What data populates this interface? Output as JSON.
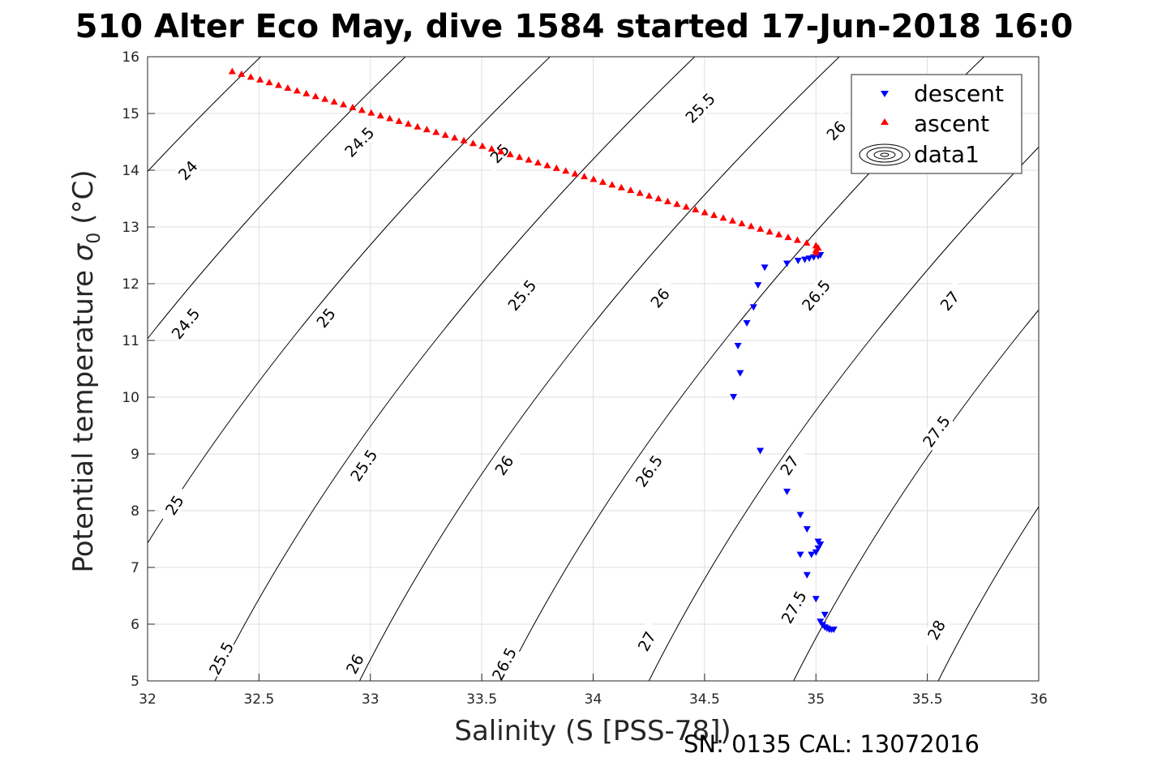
{
  "chart_data": {
    "type": "scatter",
    "title": "510 Alter Eco May, dive 1584 started 17-Jun-2018 16:0",
    "xlabel": "Salinity (S [PSS-78])",
    "ylabel": "Potential temperature",
    "ylabel_sigma": "σ",
    "ylabel_sub": "0",
    "ylabel_unit": "(°C)",
    "footer": "SN: 0135  CAL: 13072016",
    "xlim": [
      32,
      36
    ],
    "ylim": [
      5,
      16
    ],
    "xticks": [
      "32",
      "32.5",
      "33",
      "33.5",
      "34",
      "34.5",
      "35",
      "35.5",
      "36"
    ],
    "yticks": [
      "5",
      "6",
      "7",
      "8",
      "9",
      "10",
      "11",
      "12",
      "13",
      "14",
      "15",
      "16"
    ],
    "grid": true,
    "legend_position": "top-right",
    "legend": [
      {
        "name": "descent",
        "marker": "triangle-down",
        "color": "#0000ff"
      },
      {
        "name": "ascent",
        "marker": "triangle-up",
        "color": "#ff0000"
      },
      {
        "name": "data1",
        "marker": "contour",
        "color": "#000000"
      }
    ],
    "series": [
      {
        "name": "descent",
        "color": "#0000ff",
        "points": [
          [
            34.63,
            10.0
          ],
          [
            34.66,
            10.42
          ],
          [
            34.65,
            10.9
          ],
          [
            34.69,
            11.3
          ],
          [
            34.72,
            11.58
          ],
          [
            34.74,
            11.97
          ],
          [
            34.77,
            12.28
          ],
          [
            34.87,
            12.35
          ],
          [
            34.92,
            12.4
          ],
          [
            34.95,
            12.42
          ],
          [
            34.97,
            12.44
          ],
          [
            34.99,
            12.46
          ],
          [
            35.01,
            12.48
          ],
          [
            35.02,
            12.5
          ],
          [
            34.75,
            9.05
          ],
          [
            34.87,
            8.33
          ],
          [
            34.93,
            7.92
          ],
          [
            34.96,
            7.67
          ],
          [
            35.01,
            7.45
          ],
          [
            35.02,
            7.4
          ],
          [
            35.01,
            7.33
          ],
          [
            35.0,
            7.26
          ],
          [
            34.98,
            7.22
          ],
          [
            34.93,
            7.22
          ],
          [
            34.96,
            6.86
          ],
          [
            35.0,
            6.44
          ],
          [
            35.04,
            6.16
          ],
          [
            35.02,
            6.04
          ],
          [
            35.03,
            5.98
          ],
          [
            35.04,
            5.94
          ],
          [
            35.05,
            5.92
          ],
          [
            35.06,
            5.9
          ],
          [
            35.07,
            5.9
          ],
          [
            35.08,
            5.9
          ]
        ]
      },
      {
        "name": "ascent",
        "color": "#ff0000",
        "start": [
          32.38,
          15.75
        ],
        "end": [
          35.0,
          12.68
        ],
        "count": 64
      }
    ],
    "contours": [
      {
        "label": "24",
        "at": [
          [
            32.18,
            14.0
          ]
        ]
      },
      {
        "label": "24.5",
        "at": [
          [
            32.17,
            11.3
          ],
          [
            32.95,
            14.5
          ]
        ]
      },
      {
        "label": "25",
        "at": [
          [
            32.12,
            8.1
          ],
          [
            32.8,
            11.4
          ],
          [
            33.58,
            14.3
          ]
        ]
      },
      {
        "label": "25.5",
        "at": [
          [
            32.33,
            5.4
          ],
          [
            32.97,
            8.8
          ],
          [
            33.68,
            11.8
          ],
          [
            34.48,
            15.1
          ]
        ]
      },
      {
        "label": "26",
        "at": [
          [
            32.93,
            5.3
          ],
          [
            33.6,
            8.8
          ],
          [
            34.3,
            11.75
          ],
          [
            35.09,
            14.7
          ]
        ]
      },
      {
        "label": "26.5",
        "at": [
          [
            33.6,
            5.3
          ],
          [
            34.25,
            8.7
          ],
          [
            35.0,
            11.8
          ]
        ]
      },
      {
        "label": "27",
        "at": [
          [
            34.24,
            5.7
          ],
          [
            34.88,
            8.8
          ],
          [
            35.6,
            11.7
          ]
        ]
      },
      {
        "label": "27.5",
        "at": [
          [
            34.9,
            6.3
          ],
          [
            35.54,
            9.4
          ]
        ]
      },
      {
        "label": "28",
        "at": [
          [
            35.54,
            5.9
          ]
        ]
      }
    ]
  }
}
